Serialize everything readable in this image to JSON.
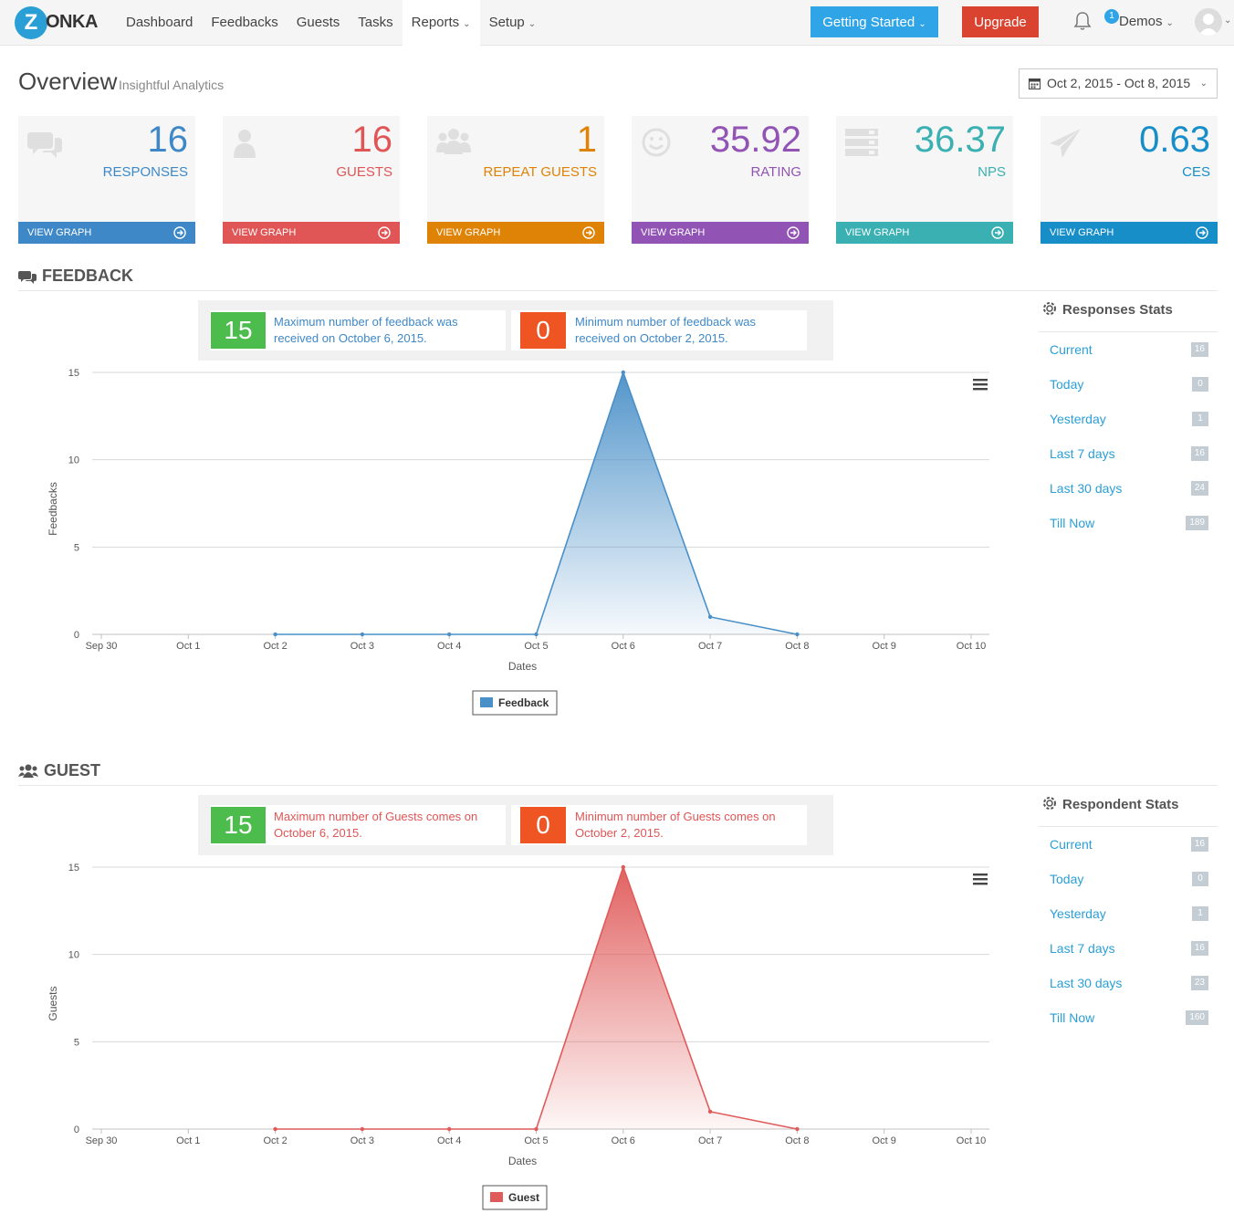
{
  "nav": {
    "logo_letter": "Z",
    "logo_text": "ONKA",
    "links": [
      "Dashboard",
      "Feedbacks",
      "Guests",
      "Tasks",
      "Reports",
      "Setup"
    ],
    "getting_started": "Getting Started",
    "upgrade": "Upgrade",
    "notification_count": "1",
    "user": "Demos"
  },
  "header": {
    "title": "Overview",
    "subtitle": "Insightful Analytics",
    "date_range": "Oct 2, 2015 - Oct 8, 2015"
  },
  "cards": [
    {
      "value": "16",
      "label": "RESPONSES",
      "footer": "VIEW GRAPH",
      "color": "#3e88c7",
      "icon": "comments-icon"
    },
    {
      "value": "16",
      "label": "GUESTS",
      "footer": "VIEW GRAPH",
      "color": "#e05555",
      "icon": "user-icon"
    },
    {
      "value": "1",
      "label": "REPEAT GUESTS",
      "footer": "VIEW GRAPH",
      "color": "#de8305",
      "icon": "users-icon"
    },
    {
      "value": "35.92",
      "label": "RATING",
      "footer": "VIEW GRAPH",
      "color": "#9154b4",
      "icon": "smile-icon"
    },
    {
      "value": "36.37",
      "label": "NPS",
      "footer": "VIEW GRAPH",
      "color": "#3bb0b2",
      "icon": "server-icon"
    },
    {
      "value": "0.63",
      "label": "CES",
      "footer": "VIEW GRAPH",
      "color": "#178ec8",
      "icon": "paper-plane-icon"
    }
  ],
  "feedback": {
    "title": "FEEDBACK",
    "max_value": "15",
    "max_text": "Maximum number of feedback was received on October 6, 2015.",
    "min_value": "0",
    "min_text": "Minimum number of feedback was received on October 2, 2015.",
    "text_color": "#3e88c7",
    "stats_title": "Responses Stats",
    "stats": [
      {
        "label": "Current",
        "value": "16"
      },
      {
        "label": "Today",
        "value": "0"
      },
      {
        "label": "Yesterday",
        "value": "1"
      },
      {
        "label": "Last 7 days",
        "value": "16"
      },
      {
        "label": "Last 30 days",
        "value": "24"
      },
      {
        "label": "Till Now",
        "value": "189"
      }
    ]
  },
  "guest": {
    "title": "GUEST",
    "max_value": "15",
    "max_text": "Maximum number of Guests comes on October 6, 2015.",
    "min_value": "0",
    "min_text": "Minimum number of Guests comes on October 2, 2015.",
    "text_color": "#e05555",
    "stats_title": "Respondent Stats",
    "stats": [
      {
        "label": "Current",
        "value": "16"
      },
      {
        "label": "Today",
        "value": "0"
      },
      {
        "label": "Yesterday",
        "value": "1"
      },
      {
        "label": "Last 7 days",
        "value": "16"
      },
      {
        "label": "Last 30 days",
        "value": "23"
      },
      {
        "label": "Till Now",
        "value": "160"
      }
    ]
  },
  "chart_data": [
    {
      "type": "area",
      "categories": [
        "Sep 30",
        "Oct 1",
        "Oct 2",
        "Oct 3",
        "Oct 4",
        "Oct 5",
        "Oct 6",
        "Oct 7",
        "Oct 8",
        "Oct 9",
        "Oct 10"
      ],
      "series": [
        {
          "name": "Feedback",
          "x": [
            "Oct 2",
            "Oct 3",
            "Oct 4",
            "Oct 5",
            "Oct 6",
            "Oct 7",
            "Oct 8"
          ],
          "values": [
            0,
            0,
            0,
            0,
            15,
            1,
            0
          ],
          "color": "#4a90c8"
        }
      ],
      "xlabel": "Dates",
      "ylabel": "Feedbacks",
      "ylim": [
        0,
        15
      ],
      "yticks": [
        0,
        5,
        10,
        15
      ],
      "grid": true,
      "legend": "bottom-center"
    },
    {
      "type": "area",
      "categories": [
        "Sep 30",
        "Oct 1",
        "Oct 2",
        "Oct 3",
        "Oct 4",
        "Oct 5",
        "Oct 6",
        "Oct 7",
        "Oct 8",
        "Oct 9",
        "Oct 10"
      ],
      "series": [
        {
          "name": "Guest",
          "x": [
            "Oct 2",
            "Oct 3",
            "Oct 4",
            "Oct 5",
            "Oct 6",
            "Oct 7",
            "Oct 8"
          ],
          "values": [
            0,
            0,
            0,
            0,
            15,
            1,
            0
          ],
          "color": "#e05a5a"
        }
      ],
      "xlabel": "Dates",
      "ylabel": "Guests",
      "ylim": [
        0,
        15
      ],
      "yticks": [
        0,
        5,
        10,
        15
      ],
      "grid": true,
      "legend": "bottom-center"
    }
  ]
}
